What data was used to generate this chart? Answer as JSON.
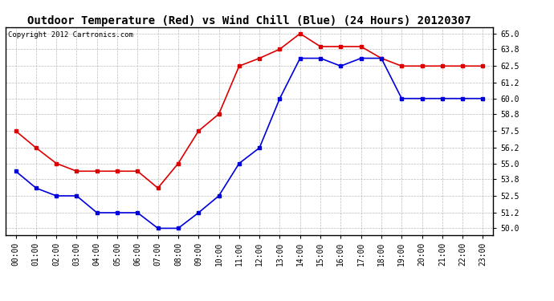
{
  "title": "Outdoor Temperature (Red) vs Wind Chill (Blue) (24 Hours) 20120307",
  "copyright": "Copyright 2012 Cartronics.com",
  "hours": [
    0,
    1,
    2,
    3,
    4,
    5,
    6,
    7,
    8,
    9,
    10,
    11,
    12,
    13,
    14,
    15,
    16,
    17,
    18,
    19,
    20,
    21,
    22,
    23
  ],
  "red_temp": [
    57.5,
    56.2,
    55.0,
    54.4,
    54.4,
    54.4,
    54.4,
    53.1,
    55.0,
    57.5,
    58.8,
    62.5,
    63.1,
    63.8,
    65.0,
    64.0,
    64.0,
    64.0,
    63.1,
    62.5,
    62.5,
    62.5,
    62.5,
    62.5
  ],
  "blue_wc": [
    54.4,
    53.1,
    52.5,
    52.5,
    51.2,
    51.2,
    51.2,
    50.0,
    50.0,
    51.2,
    52.5,
    55.0,
    56.2,
    60.0,
    63.1,
    63.1,
    62.5,
    63.1,
    63.1,
    60.0,
    60.0,
    60.0,
    60.0,
    60.0
  ],
  "ylim": [
    49.5,
    65.5
  ],
  "yticks": [
    50.0,
    51.2,
    52.5,
    53.8,
    55.0,
    56.2,
    57.5,
    58.8,
    60.0,
    61.2,
    62.5,
    63.8,
    65.0
  ],
  "red_color": "#dd0000",
  "blue_color": "#0000dd",
  "bg_color": "#ffffff",
  "grid_color": "#bbbbbb",
  "title_fontsize": 10,
  "label_fontsize": 7,
  "copyright_fontsize": 6.5
}
